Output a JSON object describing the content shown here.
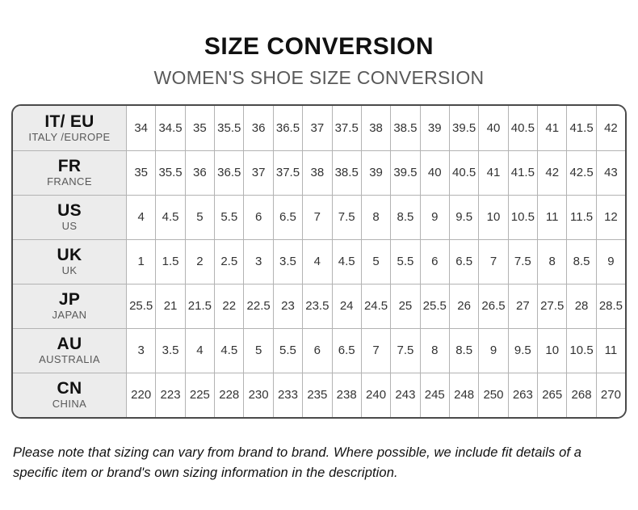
{
  "header": {
    "title": "SIZE CONVERSION",
    "subtitle": "WOMEN'S SHOE SIZE CONVERSION"
  },
  "table": {
    "rows": [
      {
        "code": "IT/ EU",
        "region": "ITALY /EUROPE",
        "values": [
          "34",
          "34.5",
          "35",
          "35.5",
          "36",
          "36.5",
          "37",
          "37.5",
          "38",
          "38.5",
          "39",
          "39.5",
          "40",
          "40.5",
          "41",
          "41.5",
          "42"
        ]
      },
      {
        "code": "FR",
        "region": "FRANCE",
        "values": [
          "35",
          "35.5",
          "36",
          "36.5",
          "37",
          "37.5",
          "38",
          "38.5",
          "39",
          "39.5",
          "40",
          "40.5",
          "41",
          "41.5",
          "42",
          "42.5",
          "43"
        ]
      },
      {
        "code": "US",
        "region": "US",
        "values": [
          "4",
          "4.5",
          "5",
          "5.5",
          "6",
          "6.5",
          "7",
          "7.5",
          "8",
          "8.5",
          "9",
          "9.5",
          "10",
          "10.5",
          "11",
          "11.5",
          "12"
        ]
      },
      {
        "code": "UK",
        "region": "UK",
        "values": [
          "1",
          "1.5",
          "2",
          "2.5",
          "3",
          "3.5",
          "4",
          "4.5",
          "5",
          "5.5",
          "6",
          "6.5",
          "7",
          "7.5",
          "8",
          "8.5",
          "9"
        ]
      },
      {
        "code": "JP",
        "region": "JAPAN",
        "values": [
          "25.5",
          "21",
          "21.5",
          "22",
          "22.5",
          "23",
          "23.5",
          "24",
          "24.5",
          "25",
          "25.5",
          "26",
          "26.5",
          "27",
          "27.5",
          "28",
          "28.5"
        ]
      },
      {
        "code": "AU",
        "region": "AUSTRALIA",
        "values": [
          "3",
          "3.5",
          "4",
          "4.5",
          "5",
          "5.5",
          "6",
          "6.5",
          "7",
          "7.5",
          "8",
          "8.5",
          "9",
          "9.5",
          "10",
          "10.5",
          "11"
        ]
      },
      {
        "code": "CN",
        "region": "CHINA",
        "values": [
          "220",
          "223",
          "225",
          "228",
          "230",
          "233",
          "235",
          "238",
          "240",
          "243",
          "245",
          "248",
          "250",
          "263",
          "265",
          "268",
          "270"
        ]
      }
    ]
  },
  "footer": {
    "note": "Please note that sizing can vary from brand to brand. Where possible, we include fit details of a specific item or brand's own sizing information in the description."
  },
  "colors": {
    "title_text": "#111111",
    "subtitle_text": "#595959",
    "header_cell_bg": "#ececec",
    "outer_border": "#4a4a4a",
    "inner_border": "#b3b3b3",
    "cell_text": "#333333"
  }
}
